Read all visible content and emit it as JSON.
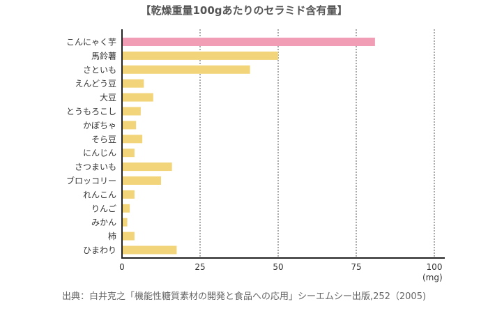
{
  "chart_data": {
    "type": "bar",
    "orientation": "horizontal",
    "title": "【乾燥重量100gあたりのセラミド含有量】",
    "categories": [
      "こんにゃく芋",
      "馬鈴薯",
      "さといも",
      "えんどう豆",
      "大豆",
      "とうもろこし",
      "かぼちゃ",
      "そら豆",
      "にんじん",
      "さつまいも",
      "ブロッコリー",
      "れんこん",
      "りんご",
      "みかん",
      "柿",
      "ひまわり"
    ],
    "values": [
      81,
      50,
      41,
      7,
      10,
      6,
      4.5,
      6.5,
      4,
      16,
      12.5,
      4,
      2.5,
      1.7,
      4,
      17.5
    ],
    "xlim": [
      0,
      100
    ],
    "xticks": [
      "0",
      "25",
      "50",
      "75",
      "100"
    ],
    "xunit": "(mg)",
    "grid": "vertical dotted",
    "colors": {
      "highlight": "#f19db5",
      "default": "#f2d57a"
    },
    "highlight_index": 0
  },
  "source": "出典：白井克之「機能性糖質素材の開発と食品への応用」シーエムシー出版,252（2005)"
}
